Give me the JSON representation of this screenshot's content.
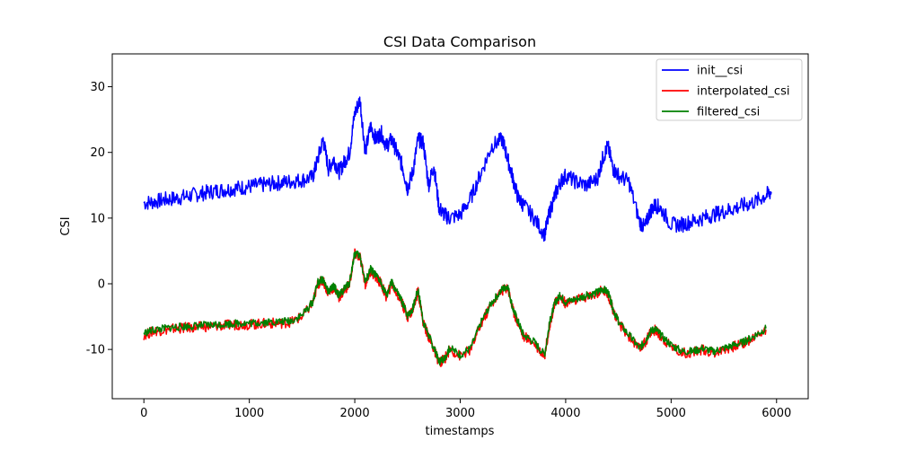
{
  "chart_data": {
    "type": "line",
    "title": "CSI Data Comparison",
    "xlabel": "timestamps",
    "ylabel": "CSI",
    "xlim": [
      -300,
      6300
    ],
    "ylim": [
      -17.5,
      35
    ],
    "xticks": [
      0,
      1000,
      2000,
      3000,
      4000,
      5000,
      6000
    ],
    "yticks": [
      -10,
      0,
      10,
      20,
      30
    ],
    "grid": false,
    "legend_position": "top-right",
    "series": [
      {
        "name": "init__csi",
        "color": "#0000ff",
        "x": [
          0,
          100,
          200,
          300,
          400,
          500,
          600,
          700,
          800,
          900,
          1000,
          1100,
          1200,
          1300,
          1400,
          1500,
          1600,
          1650,
          1700,
          1750,
          1800,
          1850,
          1900,
          1950,
          2000,
          2050,
          2100,
          2150,
          2200,
          2250,
          2300,
          2350,
          2400,
          2450,
          2500,
          2550,
          2600,
          2650,
          2700,
          2750,
          2800,
          2850,
          2900,
          3000,
          3100,
          3200,
          3300,
          3400,
          3450,
          3500,
          3550,
          3600,
          3700,
          3800,
          3850,
          3900,
          3950,
          4000,
          4100,
          4200,
          4300,
          4350,
          4400,
          4450,
          4500,
          4600,
          4700,
          4750,
          4800,
          4850,
          4900,
          5000,
          5100,
          5200,
          5300,
          5400,
          5500,
          5600,
          5700,
          5800,
          5900,
          5950
        ],
        "y": [
          12.3,
          12.5,
          12.8,
          13.0,
          13.3,
          13.6,
          13.9,
          14.2,
          14.4,
          14.6,
          14.8,
          15.0,
          15.2,
          15.4,
          15.6,
          15.8,
          16.2,
          19.0,
          22.0,
          17.5,
          19.0,
          17.0,
          18.5,
          20.0,
          26.0,
          28.0,
          20.0,
          24.0,
          22.0,
          23.0,
          21.0,
          22.0,
          20.0,
          18.0,
          14.5,
          17.0,
          22.0,
          21.5,
          15.0,
          18.0,
          11.5,
          10.5,
          10.0,
          10.5,
          13.0,
          17.0,
          21.0,
          22.0,
          19.0,
          16.0,
          13.0,
          12.0,
          10.0,
          7.5,
          11.0,
          13.5,
          15.5,
          16.5,
          15.5,
          15.0,
          16.0,
          19.0,
          21.0,
          17.5,
          16.5,
          15.5,
          9.5,
          8.5,
          11.0,
          12.0,
          11.5,
          9.0,
          9.0,
          9.5,
          10.0,
          10.5,
          11.0,
          11.5,
          12.0,
          12.5,
          13.5,
          14.0
        ]
      },
      {
        "name": "interpolated_csi",
        "color": "#ff0000",
        "x": [
          0,
          100,
          200,
          300,
          400,
          500,
          600,
          700,
          800,
          900,
          1000,
          1100,
          1200,
          1300,
          1400,
          1500,
          1600,
          1650,
          1700,
          1750,
          1800,
          1850,
          1900,
          1950,
          2000,
          2050,
          2100,
          2150,
          2200,
          2250,
          2300,
          2350,
          2400,
          2450,
          2500,
          2550,
          2600,
          2650,
          2700,
          2750,
          2800,
          2850,
          2900,
          3000,
          3100,
          3200,
          3300,
          3400,
          3450,
          3500,
          3550,
          3600,
          3700,
          3800,
          3850,
          3900,
          3950,
          4000,
          4100,
          4200,
          4300,
          4350,
          4400,
          4450,
          4500,
          4600,
          4700,
          4750,
          4800,
          4850,
          4900,
          5000,
          5100,
          5200,
          5300,
          5400,
          5500,
          5600,
          5700,
          5800,
          5900
        ],
        "y": [
          -7.8,
          -7.2,
          -7.0,
          -6.8,
          -6.7,
          -6.6,
          -6.5,
          -6.4,
          -6.3,
          -6.2,
          -6.2,
          -6.1,
          -6.0,
          -6.0,
          -5.8,
          -5.0,
          -3.0,
          0.0,
          0.5,
          -1.5,
          -0.5,
          -2.0,
          -1.0,
          0.0,
          4.5,
          4.0,
          0.0,
          2.0,
          1.0,
          0.0,
          -2.0,
          0.0,
          -1.5,
          -3.0,
          -5.0,
          -4.0,
          -1.0,
          -6.0,
          -8.0,
          -10.0,
          -12.0,
          -11.5,
          -10.0,
          -11.0,
          -10.0,
          -6.0,
          -3.0,
          -1.0,
          -0.5,
          -4.0,
          -6.0,
          -8.0,
          -9.0,
          -11.0,
          -6.0,
          -3.0,
          -2.0,
          -3.0,
          -2.5,
          -2.0,
          -1.5,
          -1.0,
          -1.5,
          -4.0,
          -6.0,
          -8.0,
          -10.0,
          -9.0,
          -7.5,
          -7.0,
          -8.0,
          -9.5,
          -10.5,
          -10.5,
          -10.0,
          -10.5,
          -10.0,
          -9.5,
          -9.0,
          -8.0,
          -7.0
        ]
      },
      {
        "name": "filtered_csi",
        "color": "#008000",
        "x": [
          0,
          100,
          200,
          300,
          400,
          500,
          600,
          700,
          800,
          900,
          1000,
          1100,
          1200,
          1300,
          1400,
          1500,
          1600,
          1650,
          1700,
          1750,
          1800,
          1850,
          1900,
          1950,
          2000,
          2050,
          2100,
          2150,
          2200,
          2250,
          2300,
          2350,
          2400,
          2450,
          2500,
          2550,
          2600,
          2650,
          2700,
          2750,
          2800,
          2850,
          2900,
          3000,
          3100,
          3200,
          3300,
          3400,
          3450,
          3500,
          3550,
          3600,
          3700,
          3800,
          3850,
          3900,
          3950,
          4000,
          4100,
          4200,
          4300,
          4350,
          4400,
          4450,
          4500,
          4600,
          4700,
          4750,
          4800,
          4850,
          4900,
          5000,
          5100,
          5200,
          5300,
          5400,
          5500,
          5600,
          5700,
          5800,
          5900
        ],
        "y": [
          -7.5,
          -7.0,
          -6.8,
          -6.6,
          -6.5,
          -6.4,
          -6.3,
          -6.2,
          -6.1,
          -6.0,
          -6.0,
          -5.9,
          -5.8,
          -5.8,
          -5.6,
          -4.8,
          -2.8,
          0.2,
          0.7,
          -1.3,
          -0.3,
          -1.8,
          -0.8,
          0.2,
          4.7,
          4.2,
          0.2,
          2.2,
          1.2,
          0.2,
          -1.8,
          0.2,
          -1.3,
          -2.8,
          -4.8,
          -3.8,
          -0.8,
          -5.8,
          -7.8,
          -9.8,
          -11.8,
          -11.3,
          -9.8,
          -10.8,
          -9.8,
          -5.8,
          -2.8,
          -0.8,
          -0.3,
          -3.8,
          -5.8,
          -7.8,
          -8.8,
          -10.8,
          -5.8,
          -2.8,
          -1.8,
          -2.8,
          -2.3,
          -1.8,
          -1.3,
          -0.8,
          -1.3,
          -3.8,
          -5.8,
          -7.8,
          -9.8,
          -8.8,
          -7.3,
          -6.8,
          -7.8,
          -9.3,
          -10.3,
          -10.3,
          -9.8,
          -10.3,
          -9.8,
          -9.3,
          -8.8,
          -7.8,
          -6.8
        ]
      }
    ]
  }
}
